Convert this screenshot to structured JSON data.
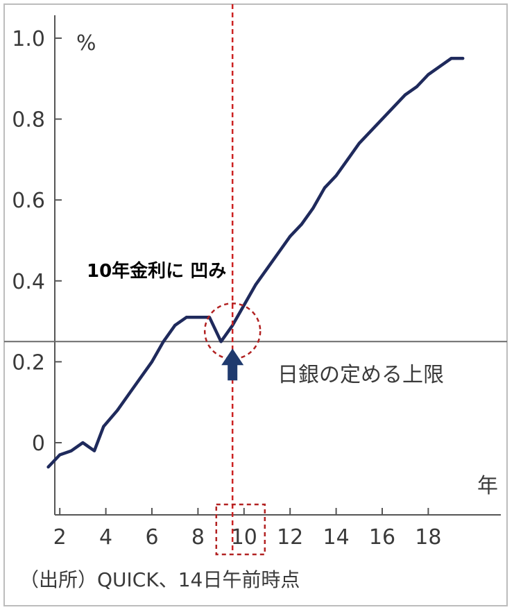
{
  "chart_data": {
    "type": "line",
    "x_ticks": [
      2,
      4,
      6,
      8,
      10,
      12,
      14,
      16,
      18
    ],
    "y_ticks": [
      "1.0",
      "0.8",
      "0.6",
      "0.4",
      "0.2",
      "0"
    ],
    "y_unit": "%",
    "x_unit": "年",
    "xlim": [
      1,
      20.5
    ],
    "ylim": [
      -0.16,
      1.05
    ],
    "grid": false,
    "series": [
      {
        "color": "#1f2a5c",
        "x": [
          1.5,
          2.0,
          2.5,
          3.0,
          3.5,
          3.9,
          4.5,
          5.0,
          5.5,
          6.0,
          6.5,
          7.0,
          7.5,
          8.0,
          8.5,
          9.0,
          9.5,
          10.0,
          10.5,
          11.0,
          11.5,
          12.0,
          12.5,
          13.0,
          13.5,
          14.0,
          14.5,
          15.0,
          15.5,
          16.0,
          16.5,
          17.0,
          17.5,
          18.0,
          18.5,
          19.0,
          19.5
        ],
        "y": [
          -0.06,
          -0.03,
          -0.02,
          0.0,
          -0.02,
          0.04,
          0.08,
          0.12,
          0.16,
          0.2,
          0.25,
          0.29,
          0.31,
          0.31,
          0.31,
          0.25,
          0.29,
          0.34,
          0.39,
          0.43,
          0.47,
          0.51,
          0.54,
          0.58,
          0.63,
          0.66,
          0.7,
          0.74,
          0.77,
          0.8,
          0.83,
          0.86,
          0.88,
          0.91,
          0.93,
          0.95,
          0.95
        ]
      }
    ],
    "reference_line": {
      "y": 0.25,
      "label": "日銀の定める上限"
    },
    "annotation": {
      "text": "10年金利に 凹み",
      "x": 9.5,
      "y": 0.25
    },
    "highlight_x": 9.5,
    "highlight_tick": "10",
    "source": "（出所）QUICK、14日午前時点"
  },
  "colors": {
    "line": "#1f2a5c",
    "arrow": "#1f3a6e",
    "axis": "#555555",
    "reference": "#6a6a6a",
    "highlight": "#cc2222"
  }
}
